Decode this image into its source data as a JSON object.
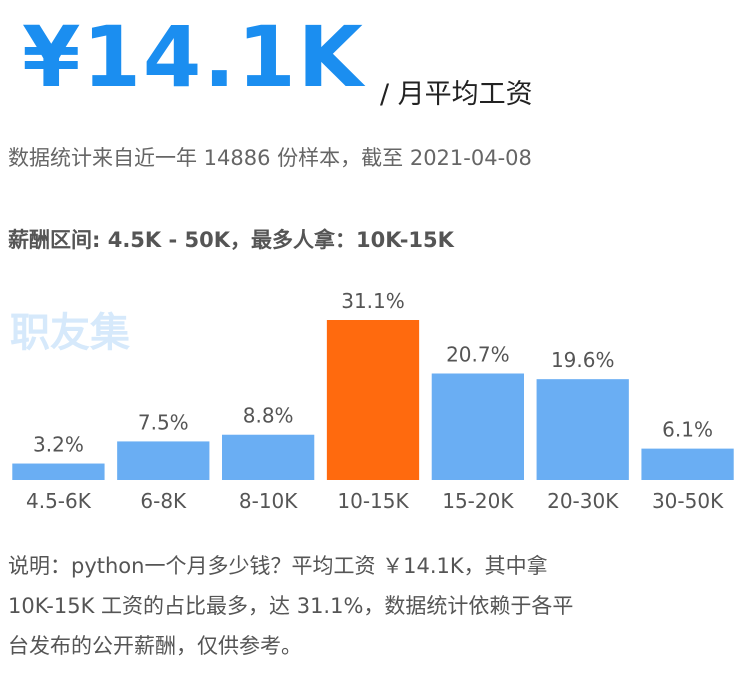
{
  "header": {
    "amount": "¥14.1K",
    "unit": "/ 月平均工资",
    "source": "数据统计来自近一年 14886 份样本，截至 2021-04-08"
  },
  "summary": {
    "range_label": "薪酬区间:",
    "range": "4.5K - 50K，",
    "most_label": "最多人拿：",
    "most": "10K-15K"
  },
  "watermark": "职友集",
  "chart_data": {
    "type": "bar",
    "categories": [
      "4.5-6K",
      "6-8K",
      "8-10K",
      "10-15K",
      "15-20K",
      "20-30K",
      "30-50K"
    ],
    "values": [
      3.2,
      7.5,
      8.8,
      31.1,
      20.7,
      19.6,
      6.1
    ],
    "value_labels": [
      "3.2%",
      "7.5%",
      "8.8%",
      "31.1%",
      "20.7%",
      "19.6%",
      "6.1%"
    ],
    "colors": [
      "#6aaef3",
      "#6aaef3",
      "#6aaef3",
      "#ff6a0e",
      "#6aaef3",
      "#6aaef3",
      "#6aaef3"
    ]
  },
  "note": {
    "lines": [
      "说明：python一个月多少钱？平均工资 ￥14.1K，其中拿",
      "10K-15K 工资的占比最多，达 31.1%，数据统计依赖于各平",
      "台发布的公开薪酬，仅供参考。"
    ]
  }
}
